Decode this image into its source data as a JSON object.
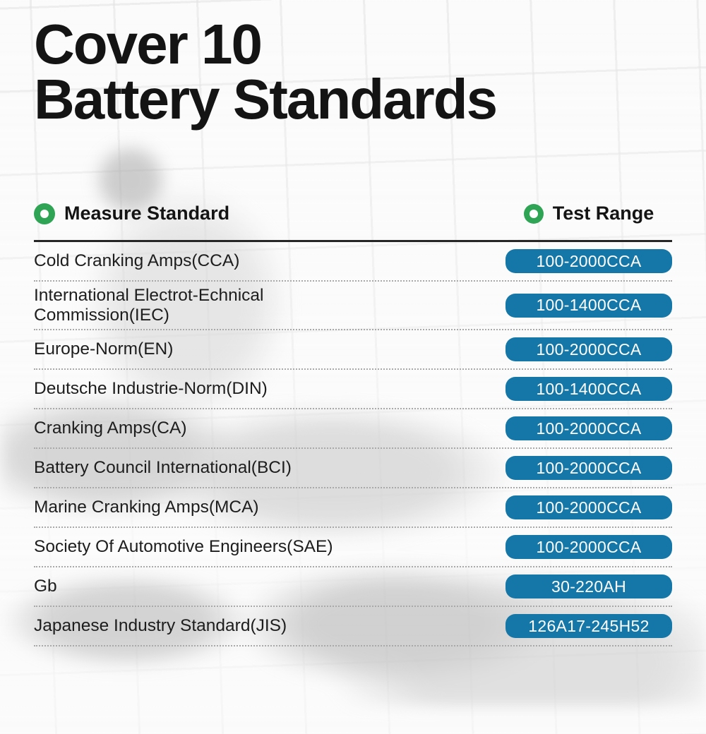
{
  "title": {
    "line1": "Cover 10",
    "line2": "Battery Standards"
  },
  "table": {
    "header": {
      "measure": "Measure Standard",
      "range": "Test Range"
    },
    "rows": [
      {
        "standard": "Cold Cranking Amps(CCA)",
        "range": "100-2000CCA"
      },
      {
        "standard": "International Electrot-Echnical Commission(IEC)",
        "range": "100-1400CCA"
      },
      {
        "standard": "Europe-Norm(EN)",
        "range": "100-2000CCA"
      },
      {
        "standard": "Deutsche Industrie-Norm(DIN)",
        "range": "100-1400CCA"
      },
      {
        "standard": "Cranking Amps(CA)",
        "range": "100-2000CCA"
      },
      {
        "standard": "Battery Council International(BCI)",
        "range": "100-2000CCA"
      },
      {
        "standard": "Marine Cranking Amps(MCA)",
        "range": "100-2000CCA"
      },
      {
        "standard": "Society Of Automotive Engineers(SAE)",
        "range": "100-2000CCA"
      },
      {
        "standard": "Gb",
        "range": "30-220AH"
      },
      {
        "standard": "Japanese Industry Standard(JIS)",
        "range": "126A17-245H52"
      }
    ]
  },
  "icons": {
    "bullet_left": "dot-ring-icon",
    "bullet_right": "dot-ring-icon"
  },
  "colors": {
    "badge_blue": "#1477a8",
    "bullet_green": "#2fa455",
    "divider_dark": "#262626",
    "dotted_gray": "#a9a9a9"
  }
}
